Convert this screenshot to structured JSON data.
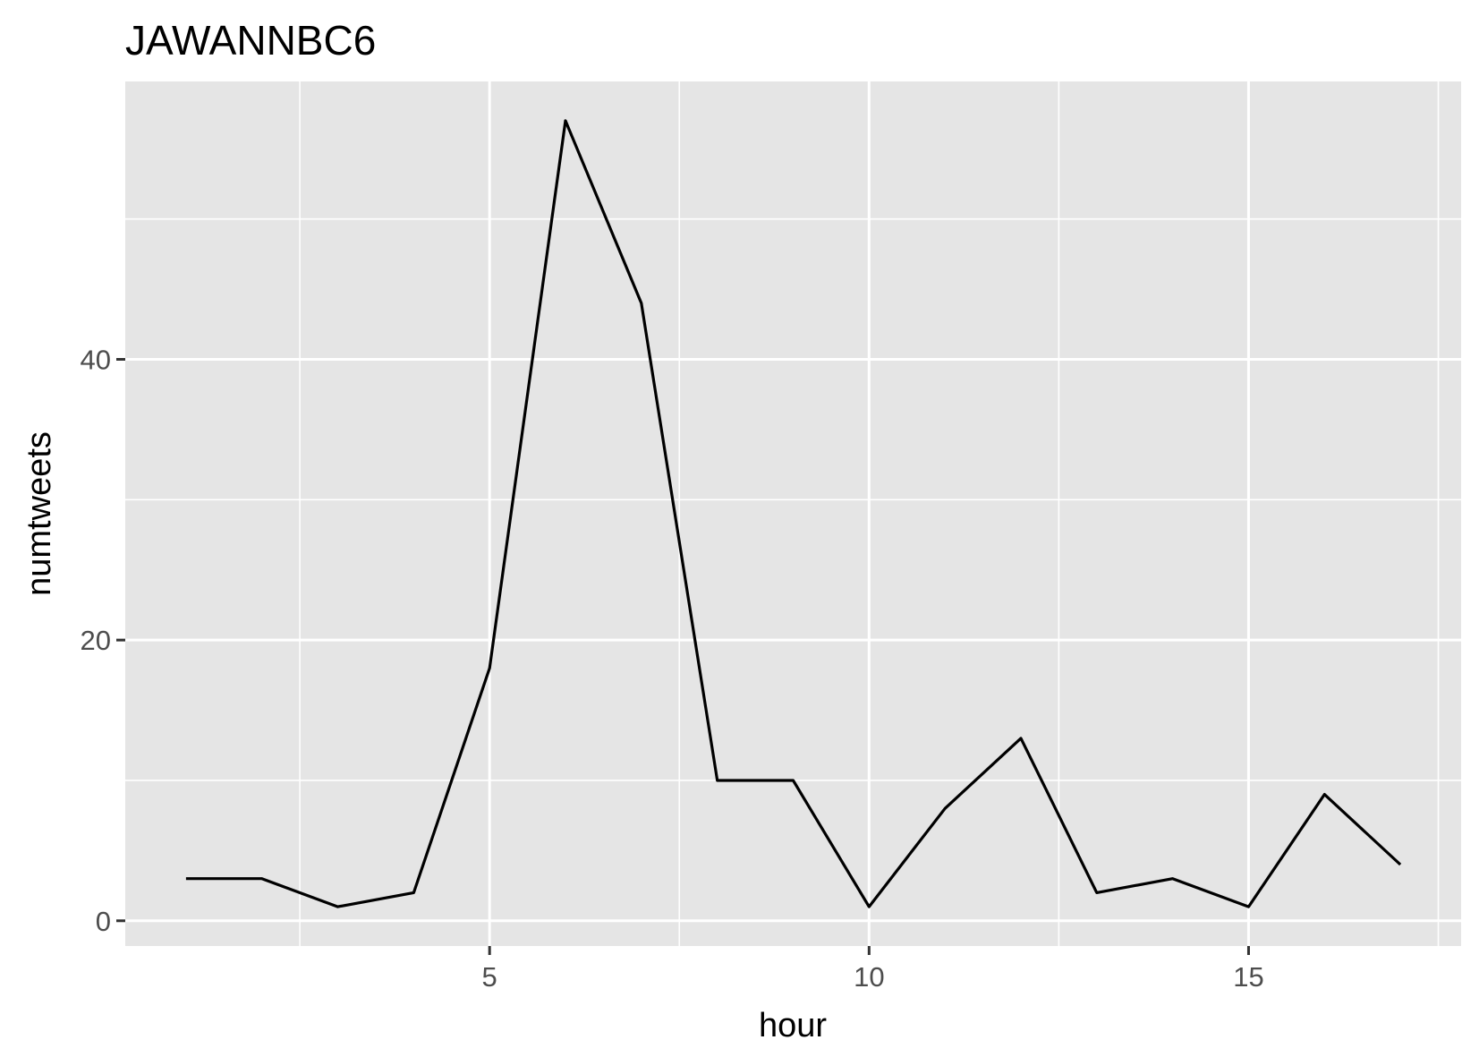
{
  "chart_data": {
    "type": "line",
    "title": "JAWANNBC6",
    "xlabel": "hour",
    "ylabel": "numtweets",
    "x": [
      1,
      2,
      3,
      4,
      5,
      6,
      7,
      8,
      9,
      10,
      11,
      12,
      13,
      14,
      15,
      16,
      17
    ],
    "series": [
      {
        "values": [
          3,
          3,
          1,
          2,
          18,
          57,
          44,
          10,
          10,
          1,
          8,
          13,
          2,
          3,
          1,
          9,
          4
        ]
      }
    ],
    "x_ticks": [
      5,
      10,
      15
    ],
    "y_ticks": [
      0,
      20,
      40
    ],
    "x_tick_labels": [
      "5",
      "10",
      "15"
    ],
    "y_tick_labels": [
      "0",
      "20",
      "40"
    ],
    "xlim": [
      0.2,
      17.8
    ],
    "ylim": [
      -1.8,
      59.8
    ],
    "grid": true,
    "legend": "none",
    "colors": {
      "panel": "#e5e5e5",
      "grid": "#ffffff",
      "line": "#000000",
      "tick_text": "#4d4d4d"
    }
  }
}
